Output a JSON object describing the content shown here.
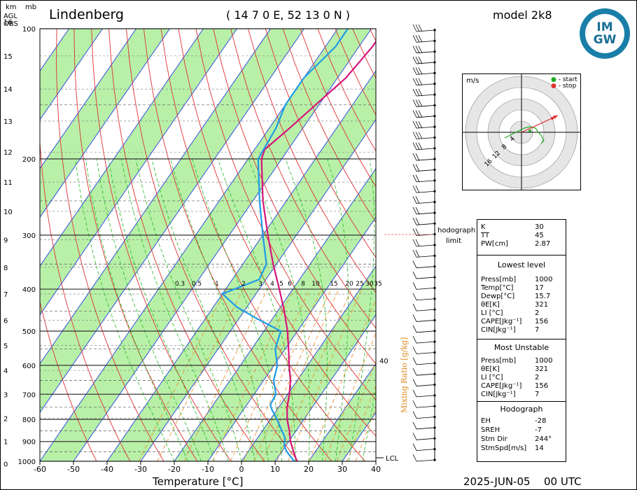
{
  "header": {
    "station": "Lindenberg",
    "coords": "( 14 7 0 E, 52 13 0 N )",
    "model": "model 2k8",
    "logo_text": "IMGW",
    "logo_top": "IM",
    "logo_bottom": "GW",
    "left_units": [
      "km",
      "mb",
      "AGL",
      "OBS"
    ]
  },
  "footer": {
    "xlabel": "Temperature [°C]",
    "date": "2025-JUN-05",
    "time": "00 UTC"
  },
  "chart_data": [
    {
      "type": "line",
      "name_chart": "skew-T log-p",
      "xlabel": "Temperature [°C]",
      "x_ticks": [
        -60,
        -50,
        -40,
        -30,
        -20,
        -10,
        0,
        10,
        20,
        30,
        40
      ],
      "p_ticks": [
        100,
        200,
        300,
        400,
        500,
        600,
        700,
        800,
        900,
        1000
      ],
      "km_ticks": [
        0,
        1,
        2,
        3,
        4,
        5,
        6,
        7,
        8,
        9,
        10,
        11,
        12,
        13,
        14,
        15,
        16
      ],
      "xlim": [
        -60,
        40
      ],
      "plim": [
        1000,
        100
      ],
      "skew_deg_per_ln": 38.5,
      "mixing_ratio_label": "Mixing Ratio [g/kg]",
      "mixing_ratios": [
        "0.3",
        "0.5",
        "1",
        "2",
        "3",
        "4",
        "5",
        "6",
        "8",
        "10",
        "15",
        "20",
        "25",
        "30",
        "35"
      ],
      "isotherm_label_40": "40",
      "lcl_label": "LCL",
      "hodograph_limit_label": [
        "hodograph",
        "limit"
      ],
      "series": [
        {
          "name": "temperature",
          "color": "#d6147a",
          "points": [
            [
              1000,
              16.5
            ],
            [
              950,
              13.5
            ],
            [
              900,
              10.5
            ],
            [
              850,
              8
            ],
            [
              800,
              5
            ],
            [
              750,
              2.5
            ],
            [
              700,
              0.5
            ],
            [
              650,
              -2
            ],
            [
              600,
              -5.5
            ],
            [
              550,
              -9
            ],
            [
              500,
              -13
            ],
            [
              450,
              -18
            ],
            [
              400,
              -24
            ],
            [
              350,
              -31
            ],
            [
              300,
              -38.5
            ],
            [
              250,
              -47
            ],
            [
              200,
              -56
            ],
            [
              190,
              -57
            ],
            [
              170,
              -54
            ],
            [
              150,
              -51
            ],
            [
              130,
              -47.5
            ],
            [
              110,
              -46
            ],
            [
              100,
              -46
            ]
          ]
        },
        {
          "name": "dewpoint",
          "color": "#1e9be6",
          "points": [
            [
              1000,
              15.7
            ],
            [
              950,
              11.5
            ],
            [
              920,
              9.5
            ],
            [
              880,
              8
            ],
            [
              840,
              5
            ],
            [
              800,
              2
            ],
            [
              760,
              -1.5
            ],
            [
              740,
              -3
            ],
            [
              700,
              -3.5
            ],
            [
              650,
              -7
            ],
            [
              600,
              -9
            ],
            [
              550,
              -13
            ],
            [
              500,
              -15
            ],
            [
              470,
              -24
            ],
            [
              440,
              -33
            ],
            [
              410,
              -40
            ],
            [
              380,
              -32
            ],
            [
              350,
              -33
            ],
            [
              300,
              -40
            ],
            [
              250,
              -48
            ],
            [
              200,
              -57
            ],
            [
              170,
              -58
            ],
            [
              150,
              -60
            ],
            [
              130,
              -60
            ],
            [
              110,
              -57
            ],
            [
              100,
              -57
            ]
          ]
        }
      ]
    },
    {
      "type": "scatter",
      "name_chart": "hodograph",
      "units": "m/s",
      "rings": [
        4,
        8,
        12,
        16
      ],
      "legend": [
        "- start",
        "- stop"
      ],
      "series": [
        {
          "name": "hodograph",
          "color": "#22aa22",
          "points": [
            [
              -6,
              -2
            ],
            [
              -4,
              -1
            ],
            [
              -1,
              0.5
            ],
            [
              1,
              1.5
            ],
            [
              3,
              2
            ],
            [
              5,
              1.5
            ],
            [
              6,
              0
            ],
            [
              7,
              -1
            ],
            [
              8,
              -3
            ],
            [
              7,
              -4
            ]
          ]
        },
        {
          "name": "storm-motion",
          "color": "#e23030",
          "points": [
            [
              0,
              0
            ],
            [
              13,
              6
            ]
          ]
        }
      ]
    },
    {
      "type": "table",
      "name_chart": "indices",
      "top": [
        [
          "K",
          "30"
        ],
        [
          "TT",
          "45"
        ],
        [
          "PW[cm]",
          "2.87"
        ]
      ],
      "lowest_title": "Lowest level",
      "lowest": [
        [
          "Press[mb]",
          "1000"
        ],
        [
          "Temp[°C]",
          "17"
        ],
        [
          "Dewp[°C]",
          "15.7"
        ],
        [
          "θE[K]",
          "321"
        ],
        [
          "LI [°C]",
          "2"
        ],
        [
          "CAPE[Jkg⁻¹]",
          "156"
        ],
        [
          "CIN[Jkg⁻¹]",
          "7"
        ]
      ],
      "mu_title": "Most Unstable",
      "mu": [
        [
          "Press[mb]",
          "1000"
        ],
        [
          "θE[K]",
          "321"
        ],
        [
          "LI [°C]",
          "2"
        ],
        [
          "CAPE[Jkg⁻¹]",
          "156"
        ],
        [
          "CIN[Jkg⁻¹]",
          "7"
        ]
      ],
      "hodo_title": "Hodograph",
      "hodo": [
        [
          "EH",
          "-28"
        ],
        [
          "SREH",
          "-7"
        ],
        [
          "Stm Dir",
          "244°"
        ],
        [
          "StmSpd[m/s]",
          "14"
        ]
      ]
    }
  ],
  "colors": {
    "temperature": "#d6147a",
    "dewpoint": "#1e9be6",
    "green_band": "#b8f0a8",
    "dry_adiabat": "#e03030",
    "moist_adiabat": "#22bb22",
    "mixing_ratio": "#f08a20",
    "isotherm": "#3050e0"
  }
}
